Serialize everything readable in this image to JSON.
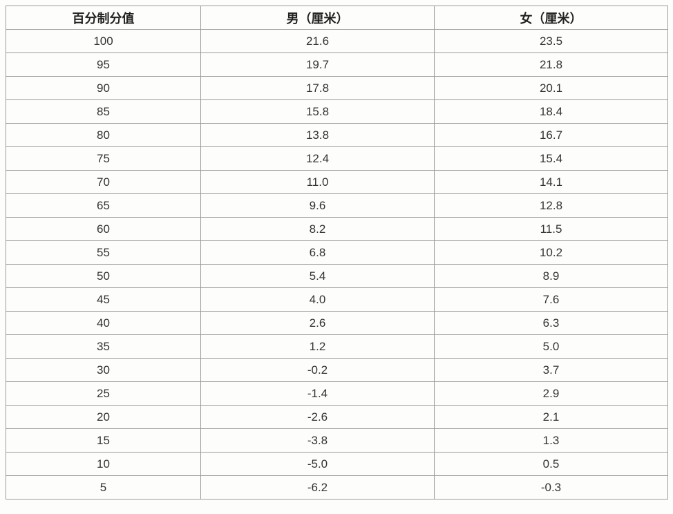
{
  "table": {
    "columns": [
      "百分制分值",
      "男（厘米）",
      "女（厘米）"
    ],
    "rows": [
      [
        "100",
        "21.6",
        "23.5"
      ],
      [
        "95",
        "19.7",
        "21.8"
      ],
      [
        "90",
        "17.8",
        "20.1"
      ],
      [
        "85",
        "15.8",
        "18.4"
      ],
      [
        "80",
        "13.8",
        "16.7"
      ],
      [
        "75",
        "12.4",
        "15.4"
      ],
      [
        "70",
        "11.0",
        "14.1"
      ],
      [
        "65",
        "9.6",
        "12.8"
      ],
      [
        "60",
        "8.2",
        "11.5"
      ],
      [
        "55",
        "6.8",
        "10.2"
      ],
      [
        "50",
        "5.4",
        "8.9"
      ],
      [
        "45",
        "4.0",
        "7.6"
      ],
      [
        "40",
        "2.6",
        "6.3"
      ],
      [
        "35",
        "1.2",
        "5.0"
      ],
      [
        "30",
        "-0.2",
        "3.7"
      ],
      [
        "25",
        "-1.4",
        "2.9"
      ],
      [
        "20",
        "-2.6",
        "2.1"
      ],
      [
        "15",
        "-3.8",
        "1.3"
      ],
      [
        "10",
        "-5.0",
        "0.5"
      ],
      [
        "5",
        "-6.2",
        "-0.3"
      ]
    ]
  }
}
